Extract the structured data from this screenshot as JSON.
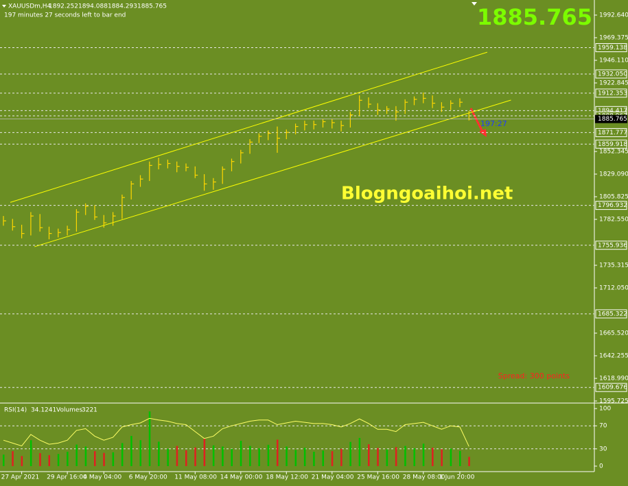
{
  "chart_data": [
    {
      "type": "ohlc",
      "symbol_label": "XAUUSDm,H4",
      "last_open": 1892.252,
      "timer_text": "197 minutes 27 seconds left to bar end",
      "countdown": "197:27",
      "watermark": "Blogngoaihoi.net",
      "spread_text": "Spread: 300 points",
      "color": "#ffd700",
      "background": "#6b8e23",
      "categories": [
        null,
        null,
        "27 Apr 2021",
        null,
        null,
        null,
        null,
        "29 Apr 16:00",
        null,
        null,
        null,
        "4 May 04:00",
        null,
        null,
        null,
        null,
        "6 May 20:00",
        null,
        null,
        null,
        null,
        "11 May 08:00",
        null,
        null,
        null,
        null,
        "14 May 00:00",
        null,
        null,
        null,
        null,
        "18 May 12:00",
        null,
        null,
        null,
        null,
        "21 May 04:00",
        null,
        null,
        null,
        null,
        "25 May 16:00",
        null,
        null,
        null,
        null,
        "28 May 08:00",
        null,
        null,
        null,
        "1 Jun 20:00",
        null
      ],
      "high": [
        1786,
        1783,
        1777,
        1790,
        1788,
        1775,
        1773,
        1776,
        1793,
        1799,
        1797,
        1787,
        1790,
        1808,
        1822,
        1828,
        1842,
        1846,
        1844,
        1842,
        1840,
        1837,
        1829,
        1825,
        1837,
        1845,
        1854,
        1865,
        1871,
        1874,
        1878,
        1875,
        1881,
        1884,
        1884,
        1886,
        1886,
        1884,
        1893,
        1910,
        1908,
        1902,
        1899,
        1899,
        1906,
        1909,
        1913,
        1910,
        1903,
        1905,
        1907,
        1894.088
      ],
      "low": [
        1776,
        1771,
        1763,
        1766,
        1770,
        1762,
        1764,
        1766,
        1770,
        1787,
        1782,
        1774,
        1776,
        1783,
        1803,
        1816,
        1822,
        1834,
        1835,
        1831,
        1832,
        1825,
        1812,
        1813,
        1819,
        1832,
        1840,
        1850,
        1861,
        1864,
        1851,
        1865,
        1870,
        1874,
        1875,
        1877,
        1876,
        1873,
        1877,
        1889,
        1897,
        1890,
        1891,
        1884,
        1891,
        1900,
        1902,
        1897,
        1893,
        1895,
        1898,
        1884.293
      ],
      "close": [
        1781,
        1775,
        1768,
        1786,
        1774,
        1768,
        1769,
        1772,
        1790,
        1796,
        1785,
        1779,
        1786,
        1805,
        1819,
        1824,
        1838,
        1839,
        1840,
        1837,
        1836,
        1828,
        1819,
        1821,
        1834,
        1842,
        1851,
        1862,
        1868,
        1871,
        1866,
        1872,
        1878,
        1880,
        1880,
        1883,
        1882,
        1879,
        1890,
        1905,
        1901,
        1895,
        1896,
        1893,
        1903,
        1906,
        1907,
        1902,
        1898,
        1902,
        1903,
        1885.765
      ],
      "ylim": [
        1595.725,
        1992.64
      ],
      "yticks": [
        {
          "value": 1992.64,
          "label": "1992.640"
        },
        1969.375,
        {
          "value": 1946.11,
          "label": "1946.110"
        },
        1922.845,
        1852.345,
        {
          "value": 1829.09,
          "label": "1829.090"
        },
        1805.825,
        {
          "value": 1782.55,
          "label": "1782.550"
        },
        1735.315,
        {
          "value": 1712.05,
          "label": "1712.050"
        },
        {
          "value": 1665.52,
          "label": "1665.520"
        },
        1642.255,
        {
          "value": 1618.99,
          "label": "1618.990"
        },
        1595.725
      ],
      "levels": [
        1959.138,
        {
          "value": 1932.05,
          "label": "1932.050"
        },
        1912.353,
        1894.417,
        1888.967,
        1871.777,
        1859.918,
        1796.932,
        1755.936,
        1685.322,
        1609.676
      ],
      "channel_lines": [
        {
          "start": [
            0.75,
            1800
          ],
          "end": [
            53,
            1954.5
          ]
        },
        {
          "start": [
            3.4,
            1754.4
          ],
          "end": [
            55.6,
            1905.2
          ]
        }
      ]
    },
    {
      "type": "rsi",
      "indicator_name": "RSI(14)",
      "volumes_label": "Volumes",
      "values": [
        45,
        40,
        35,
        55,
        45,
        38,
        40,
        45,
        62,
        65,
        52,
        45,
        50,
        68,
        72,
        75,
        83,
        80,
        78,
        74,
        72,
        60,
        48,
        52,
        65,
        70,
        74,
        78,
        80,
        80,
        72,
        75,
        78,
        76,
        74,
        74,
        72,
        68,
        74,
        82,
        74,
        64,
        64,
        60,
        72,
        74,
        76,
        70,
        64,
        70,
        68,
        34.1241
      ],
      "volumes": [
        4000,
        5200,
        3500,
        9000,
        4500,
        3800,
        4200,
        5000,
        7500,
        6800,
        5200,
        4600,
        4800,
        8000,
        10500,
        9000,
        19000,
        8500,
        6000,
        7000,
        5500,
        6500,
        9500,
        7200,
        6800,
        6000,
        8800,
        7000,
        6200,
        7400,
        9200,
        6800,
        5600,
        6400,
        5000,
        5400,
        5200,
        6000,
        8400,
        9800,
        7600,
        6300,
        5800,
        6600,
        7000,
        6200,
        7800,
        6400,
        5900,
        6100,
        5300,
        3221
      ],
      "volume_ylim": [
        0,
        20000
      ],
      "color": "#ffff66",
      "ylim": [
        0,
        100
      ],
      "yticks": [
        0,
        30,
        70,
        100
      ],
      "levels": [
        30,
        70
      ]
    }
  ]
}
